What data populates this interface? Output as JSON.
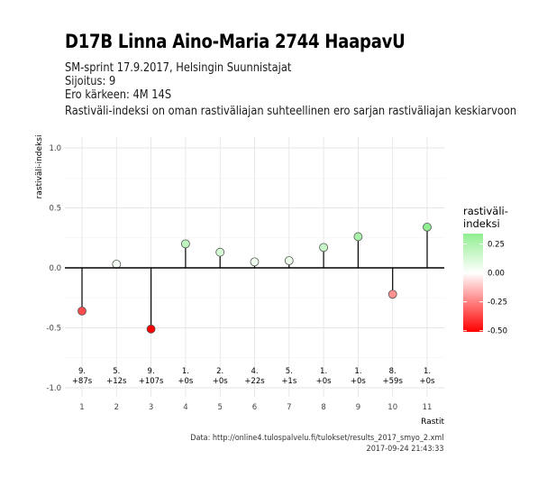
{
  "header": {
    "title": "D17B Linna Aino-Maria 2744 HaapavU",
    "subtitle_lines": [
      "SM-sprint 17.9.2017, Helsingin Suunnistajat",
      "Sijoitus: 9",
      "Ero kärkeen: 4M 14S",
      "Rastiväli-indeksi on oman rastiväliajan suhteellinen ero sarjan rastiväliajan keskiarvoon"
    ]
  },
  "caption": {
    "line1": "Data: http://online4.tulospalvelu.fi/tulokset/results_2017_smyo_2.xml",
    "line2": "2017-09-24 21:43:33"
  },
  "chart_data": {
    "type": "lollipop",
    "xlabel": "Rastit",
    "ylabel": "rastiväli-indeksi",
    "ylim": [
      -1.0,
      1.0
    ],
    "yticks": [
      -1.0,
      -0.5,
      0.0,
      0.5,
      1.0
    ],
    "ytick_labels": [
      "-1.0",
      "-0.5",
      "0.0",
      "0.5",
      "1.0"
    ],
    "x": [
      1,
      2,
      3,
      4,
      5,
      6,
      7,
      8,
      9,
      10,
      11
    ],
    "values": [
      -0.36,
      0.03,
      -0.51,
      0.2,
      0.13,
      0.05,
      0.06,
      0.17,
      0.26,
      -0.22,
      0.34
    ],
    "annotations": [
      [
        "9.",
        "+87s"
      ],
      [
        "5.",
        "+12s"
      ],
      [
        "9.",
        "+107s"
      ],
      [
        "1.",
        "+0s"
      ],
      [
        "2.",
        "+0s"
      ],
      [
        "4.",
        "+22s"
      ],
      [
        "5.",
        "+1s"
      ],
      [
        "1.",
        "+0s"
      ],
      [
        "1.",
        "+0s"
      ],
      [
        "8.",
        "+59s"
      ],
      [
        "1.",
        "+0s"
      ]
    ],
    "grid": true,
    "legend": {
      "title_lines": [
        "rastiväli-",
        "indeksi"
      ],
      "position": "right",
      "ticks": [
        0.25,
        0.0,
        -0.25,
        -0.5
      ],
      "tick_labels": [
        "0.25",
        "0.00",
        "-0.25",
        "-0.50"
      ],
      "range": [
        -0.51,
        0.34
      ],
      "colors": {
        "low": "#ff0000",
        "mid": "#ffffff",
        "high": "#90ee90"
      }
    }
  }
}
